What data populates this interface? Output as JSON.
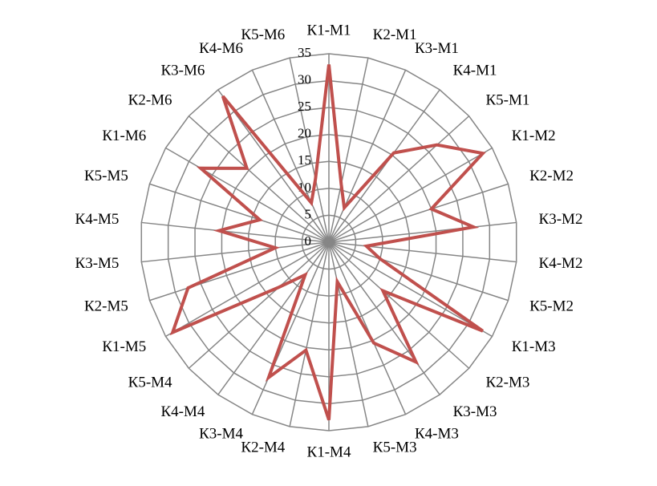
{
  "chart_data": {
    "type": "radar",
    "categories": [
      "К1-М1",
      "К2-М1",
      "К3-М1",
      "К4-М1",
      "К5-М1",
      "К1-М2",
      "К2-М2",
      "К3-М2",
      "К4-М2",
      "К5-М2",
      "К1-М3",
      "К2-М3",
      "К3-М3",
      "К4-М3",
      "К5-М3",
      "К1-М4",
      "К2-М4",
      "К3-М4",
      "К4-М4",
      "К5-М4",
      "К1-М5",
      "К2-М5",
      "К3-М5",
      "К4-М5",
      "К5-М5",
      "К1-М6",
      "К2-М6",
      "К3-М6",
      "К4-М6",
      "К5-М6"
    ],
    "values": [
      33,
      11,
      7,
      20.5,
      27,
      33,
      20,
      27,
      7,
      10,
      33,
      13.5,
      27.5,
      20.5,
      7.5,
      33,
      20.5,
      27.5,
      7.5,
      12.5,
      33.5,
      27.5,
      10,
      20.5,
      13.5,
      27.5,
      20.5,
      33.5,
      8,
      12
    ],
    "color": "#c0504d",
    "grid_color": "#868686",
    "ylim": [
      0,
      35
    ],
    "yticks": [
      0,
      5,
      10,
      15,
      20,
      25,
      30,
      35
    ],
    "grid": true
  }
}
